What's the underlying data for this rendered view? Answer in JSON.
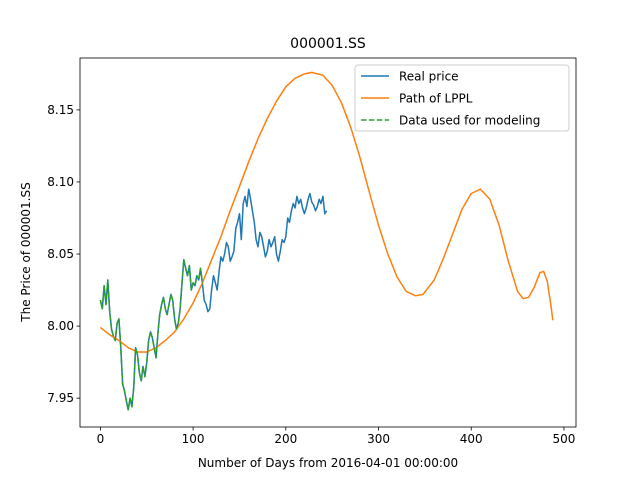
{
  "chart_data": {
    "type": "line",
    "title": "000001.SS",
    "xlabel": "Number of Days from 2016-04-01 00:00:00",
    "ylabel": "The Price of 000001.SS",
    "xlim": [
      -22,
      513
    ],
    "ylim": [
      7.93,
      8.186
    ],
    "xticks": [
      0,
      100,
      200,
      300,
      400,
      500
    ],
    "yticks": [
      7.95,
      8.0,
      8.05,
      8.1,
      8.15
    ],
    "xtick_labels": [
      "0",
      "100",
      "200",
      "300",
      "400",
      "500"
    ],
    "ytick_labels": [
      "7.95",
      "8.00",
      "8.05",
      "8.10",
      "8.15"
    ],
    "grid": false,
    "legend_position": "top-right",
    "series": [
      {
        "name": "Real price",
        "color": "#1f77b4",
        "style": "solid",
        "x": [
          0,
          2,
          4,
          6,
          8,
          10,
          12,
          14,
          16,
          18,
          20,
          22,
          24,
          26,
          28,
          30,
          32,
          34,
          36,
          38,
          40,
          42,
          44,
          46,
          48,
          50,
          52,
          54,
          56,
          58,
          60,
          62,
          64,
          66,
          68,
          70,
          72,
          74,
          76,
          78,
          80,
          82,
          84,
          86,
          88,
          90,
          92,
          94,
          96,
          98,
          100,
          102,
          104,
          106,
          108,
          110,
          112,
          114,
          116,
          118,
          120,
          122,
          124,
          126,
          128,
          130,
          132,
          134,
          136,
          138,
          140,
          142,
          144,
          146,
          148,
          150,
          152,
          154,
          156,
          158,
          160,
          162,
          164,
          166,
          168,
          170,
          172,
          174,
          176,
          178,
          180,
          182,
          184,
          186,
          188,
          190,
          192,
          194,
          196,
          198,
          200,
          202,
          204,
          206,
          208,
          210,
          212,
          214,
          216,
          218,
          220,
          222,
          224,
          226,
          228,
          230,
          232,
          234,
          236,
          238,
          240,
          242,
          244
        ],
        "y": [
          8.018,
          8.012,
          8.028,
          8.015,
          8.032,
          8.01,
          7.998,
          7.993,
          7.99,
          8.002,
          8.005,
          7.985,
          7.96,
          7.955,
          7.948,
          7.942,
          7.95,
          7.944,
          7.958,
          7.985,
          7.98,
          7.968,
          7.962,
          7.972,
          7.965,
          7.975,
          7.99,
          7.996,
          7.992,
          7.985,
          7.978,
          7.995,
          8.008,
          8.015,
          8.02,
          8.012,
          8.008,
          8.015,
          8.022,
          8.018,
          8.005,
          7.998,
          8.002,
          8.012,
          8.03,
          8.046,
          8.04,
          8.035,
          8.042,
          8.025,
          8.03,
          8.028,
          8.035,
          8.032,
          8.04,
          8.03,
          8.018,
          8.015,
          8.01,
          8.012,
          8.025,
          8.035,
          8.03,
          8.025,
          8.038,
          8.048,
          8.045,
          8.05,
          8.058,
          8.055,
          8.045,
          8.048,
          8.052,
          8.068,
          8.072,
          8.078,
          8.06,
          8.085,
          8.09,
          8.083,
          8.095,
          8.088,
          8.08,
          8.072,
          8.06,
          8.055,
          8.065,
          8.062,
          8.055,
          8.048,
          8.052,
          8.06,
          8.055,
          8.058,
          8.062,
          8.05,
          8.045,
          8.052,
          8.06,
          8.058,
          8.062,
          8.075,
          8.072,
          8.08,
          8.085,
          8.082,
          8.09,
          8.085,
          8.088,
          8.082,
          8.078,
          8.082,
          8.088,
          8.092,
          8.086,
          8.084,
          8.08,
          8.083,
          8.088,
          8.085,
          8.09,
          8.078,
          8.08
        ]
      },
      {
        "name": "Path of LPPL",
        "color": "#ff7f0e",
        "style": "solid",
        "x": [
          0,
          10,
          20,
          30,
          40,
          50,
          60,
          70,
          80,
          90,
          100,
          110,
          120,
          130,
          140,
          150,
          160,
          170,
          180,
          190,
          200,
          210,
          220,
          228,
          240,
          250,
          260,
          270,
          280,
          290,
          300,
          310,
          320,
          330,
          340,
          348,
          360,
          370,
          380,
          390,
          400,
          410,
          420,
          430,
          440,
          450,
          456,
          462,
          468,
          474,
          478,
          482,
          486,
          488
        ],
        "y": [
          7.999,
          7.994,
          7.99,
          7.985,
          7.982,
          7.982,
          7.985,
          7.99,
          7.996,
          8.005,
          8.016,
          8.03,
          8.046,
          8.062,
          8.08,
          8.097,
          8.114,
          8.13,
          8.144,
          8.156,
          8.166,
          8.172,
          8.175,
          8.176,
          8.174,
          8.167,
          8.155,
          8.138,
          8.117,
          8.093,
          8.07,
          8.05,
          8.034,
          8.024,
          8.021,
          8.022,
          8.032,
          8.047,
          8.064,
          8.081,
          8.092,
          8.095,
          8.088,
          8.07,
          8.045,
          8.024,
          8.019,
          8.02,
          8.027,
          8.037,
          8.038,
          8.031,
          8.014,
          8.004
        ]
      },
      {
        "name": "Data used for modeling",
        "color": "#2ca02c",
        "style": "dashed",
        "x": [
          0,
          2,
          4,
          6,
          8,
          10,
          12,
          14,
          16,
          18,
          20,
          22,
          24,
          26,
          28,
          30,
          32,
          34,
          36,
          38,
          40,
          42,
          44,
          46,
          48,
          50,
          52,
          54,
          56,
          58,
          60,
          62,
          64,
          66,
          68,
          70,
          72,
          74,
          76,
          78,
          80,
          82,
          84,
          86,
          88,
          90,
          92,
          94,
          96,
          98,
          100,
          102,
          104,
          106,
          108,
          110
        ],
        "y": [
          8.018,
          8.012,
          8.028,
          8.015,
          8.032,
          8.01,
          7.998,
          7.993,
          7.99,
          8.002,
          8.005,
          7.985,
          7.96,
          7.955,
          7.948,
          7.942,
          7.95,
          7.944,
          7.958,
          7.985,
          7.98,
          7.968,
          7.962,
          7.972,
          7.965,
          7.975,
          7.99,
          7.996,
          7.992,
          7.985,
          7.978,
          7.995,
          8.008,
          8.015,
          8.02,
          8.012,
          8.008,
          8.015,
          8.022,
          8.018,
          8.005,
          7.998,
          8.002,
          8.012,
          8.03,
          8.046,
          8.04,
          8.035,
          8.042,
          8.025,
          8.03,
          8.028,
          8.035,
          8.032,
          8.04,
          8.03
        ]
      }
    ]
  }
}
